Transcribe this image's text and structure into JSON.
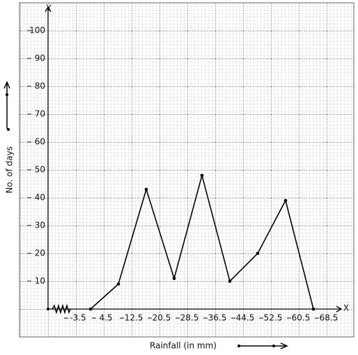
{
  "chart_data": {
    "type": "line",
    "x_label": "Rainfall (in mm)",
    "y_label": "No. of days",
    "x_axis_name": "X",
    "y_axis_name": "Y",
    "x": [
      0.5,
      8.5,
      16.5,
      24.5,
      32.5,
      40.5,
      48.5,
      56.5,
      64.5
    ],
    "series": [
      {
        "color": "#000000",
        "values": [
          0,
          9,
          43,
          11,
          48,
          10,
          20,
          39,
          0
        ]
      }
    ],
    "xlim": [
      -11.7,
      72.5
    ],
    "ylim": [
      0,
      108.5
    ],
    "xticks": [
      -3.5,
      4.5,
      12.5,
      20.5,
      28.5,
      36.5,
      44.5,
      52.5,
      60.5,
      68.5
    ],
    "yticks": [
      10,
      20,
      30,
      40,
      50,
      60,
      70,
      80,
      90,
      100
    ],
    "grid": true
  }
}
